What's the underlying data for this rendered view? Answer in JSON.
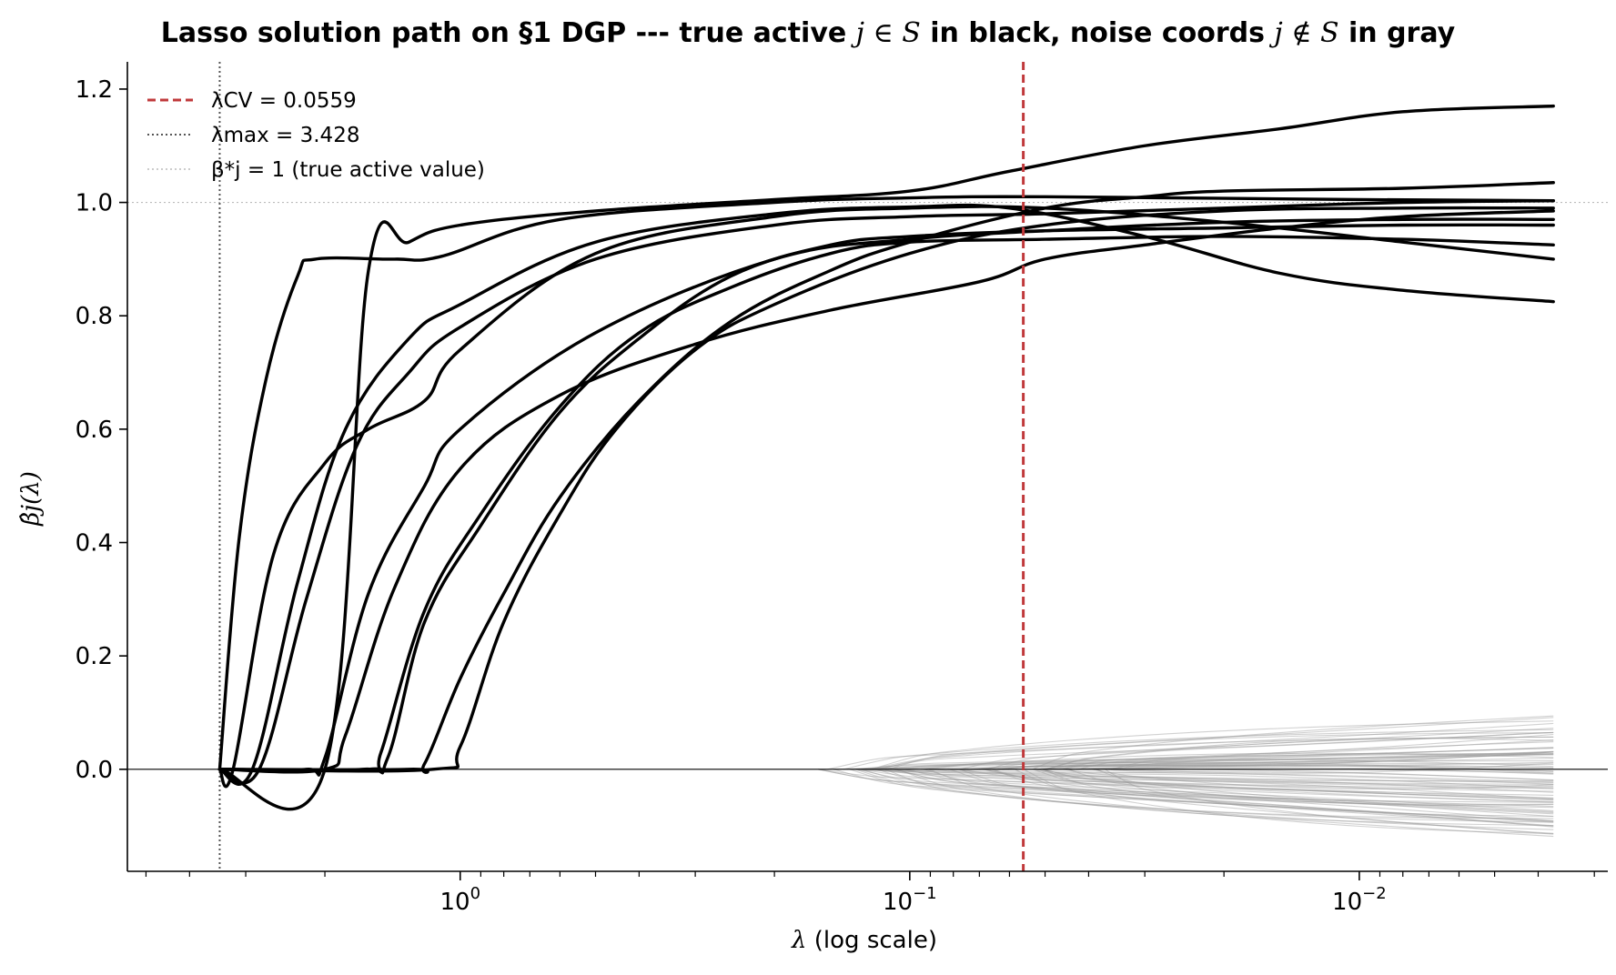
{
  "chart_data": {
    "type": "line",
    "title": {
      "part1": "Lasso solution path on §1 DGP --- true active ",
      "math1": "j ∈ S",
      "part2": " in black, noise coords ",
      "math2": "j ∉ S",
      "part3": " in gray"
    },
    "xlabel": {
      "symbol": "λ",
      "text": " (log scale)"
    },
    "ylabel": "β̂j(λ)",
    "x_scale": "log",
    "x_axis_reversed": true,
    "xlim": [
      5.5,
      0.0028
    ],
    "ylim": [
      -0.18,
      1.24
    ],
    "x_ticks": [
      {
        "value": 1,
        "label": "10",
        "exp": "0"
      },
      {
        "value": 0.1,
        "label": "10",
        "exp": "−1"
      },
      {
        "value": 0.01,
        "label": "10",
        "exp": "−2"
      }
    ],
    "y_ticks": [
      {
        "value": 0.0,
        "label": "0.0"
      },
      {
        "value": 0.2,
        "label": "0.2"
      },
      {
        "value": 0.4,
        "label": "0.4"
      },
      {
        "value": 0.6,
        "label": "0.6"
      },
      {
        "value": 0.8,
        "label": "0.8"
      },
      {
        "value": 1.0,
        "label": "1.0"
      },
      {
        "value": 1.2,
        "label": "1.2"
      }
    ],
    "grid": false,
    "legend": {
      "placement": "top-left",
      "entries": [
        {
          "label": "λCV = 0.0559",
          "style": "dashed",
          "color": "#c0393b"
        },
        {
          "label": "λmax = 3.428",
          "style": "dotted",
          "color": "#555555"
        },
        {
          "label": "β*j = 1 (true active value)",
          "style": "dotted",
          "color": "#bbbbbb"
        }
      ]
    },
    "reference_lines": {
      "lambda_cv": 0.0559,
      "lambda_max": 3.428,
      "true_active_value": 1.0,
      "zero_line": 0.0
    },
    "colors": {
      "active": "#000000",
      "noise": "#9a9a9a",
      "cv": "#c0393b",
      "max": "#555555",
      "truth": "#bbbbbb"
    },
    "series": [
      {
        "group": "active",
        "points": [
          [
            3.428,
            0
          ],
          [
            3.1,
            0.41
          ],
          [
            2.7,
            0.69
          ],
          [
            2.3,
            0.87
          ],
          [
            2.1,
            0.9
          ],
          [
            1.4,
            0.9
          ],
          [
            1.1,
            0.905
          ],
          [
            0.6,
            0.97
          ],
          [
            0.2,
            1.0
          ],
          [
            0.1,
            1.008
          ],
          [
            0.05,
            1.01
          ],
          [
            0.01,
            1.005
          ],
          [
            0.0037,
            1.003
          ]
        ]
      },
      {
        "group": "active",
        "points": [
          [
            3.428,
            0
          ],
          [
            2.0,
            0
          ],
          [
            1.6,
            0.88
          ],
          [
            1.3,
            0.93
          ],
          [
            1.0,
            0.96
          ],
          [
            0.5,
            0.985
          ],
          [
            0.2,
            1.005
          ],
          [
            0.1,
            1.02
          ],
          [
            0.06,
            1.055
          ],
          [
            0.03,
            1.1
          ],
          [
            0.015,
            1.13
          ],
          [
            0.008,
            1.16
          ],
          [
            0.0037,
            1.17
          ]
        ]
      },
      {
        "group": "active",
        "points": [
          [
            3.428,
            0
          ],
          [
            3.2,
            0
          ],
          [
            2.6,
            0.38
          ],
          [
            2.0,
            0.54
          ],
          [
            1.6,
            0.6
          ],
          [
            1.2,
            0.65
          ],
          [
            1.0,
            0.74
          ],
          [
            0.5,
            0.91
          ],
          [
            0.2,
            0.975
          ],
          [
            0.1,
            0.99
          ],
          [
            0.05,
            0.99
          ],
          [
            0.02,
            0.965
          ],
          [
            0.008,
            0.93
          ],
          [
            0.0037,
            0.9
          ]
        ]
      },
      {
        "group": "active",
        "points": [
          [
            3.428,
            0
          ],
          [
            2.9,
            0
          ],
          [
            2.3,
            0.33
          ],
          [
            1.8,
            0.6
          ],
          [
            1.3,
            0.76
          ],
          [
            1.0,
            0.82
          ],
          [
            0.5,
            0.93
          ],
          [
            0.2,
            0.98
          ],
          [
            0.1,
            0.992
          ],
          [
            0.06,
            0.99
          ],
          [
            0.03,
            0.94
          ],
          [
            0.015,
            0.875
          ],
          [
            0.008,
            0.845
          ],
          [
            0.0037,
            0.825
          ]
        ]
      },
      {
        "group": "active",
        "points": [
          [
            3.428,
            0
          ],
          [
            2.8,
            0
          ],
          [
            2.2,
            0.3
          ],
          [
            1.7,
            0.57
          ],
          [
            1.3,
            0.7
          ],
          [
            1.0,
            0.78
          ],
          [
            0.5,
            0.9
          ],
          [
            0.2,
            0.96
          ],
          [
            0.1,
            0.975
          ],
          [
            0.05,
            0.98
          ],
          [
            0.02,
            0.99
          ],
          [
            0.008,
            1.0
          ],
          [
            0.0037,
            1.003
          ]
        ]
      },
      {
        "group": "active",
        "points": [
          [
            3.428,
            0
          ],
          [
            2.2,
            0
          ],
          [
            2.0,
            0.02
          ],
          [
            1.6,
            0.31
          ],
          [
            1.2,
            0.5
          ],
          [
            1.0,
            0.6
          ],
          [
            0.5,
            0.77
          ],
          [
            0.2,
            0.9
          ],
          [
            0.1,
            0.935
          ],
          [
            0.05,
            0.95
          ],
          [
            0.02,
            0.965
          ],
          [
            0.008,
            0.97
          ],
          [
            0.0037,
            0.97
          ]
        ]
      },
      {
        "group": "active",
        "points": [
          [
            3.428,
            0
          ],
          [
            2.0,
            0
          ],
          [
            1.8,
            0.06
          ],
          [
            1.4,
            0.32
          ],
          [
            1.0,
            0.53
          ],
          [
            0.6,
            0.66
          ],
          [
            0.3,
            0.75
          ],
          [
            0.15,
            0.81
          ],
          [
            0.07,
            0.86
          ],
          [
            0.05,
            0.9
          ],
          [
            0.03,
            0.925
          ],
          [
            0.015,
            0.955
          ],
          [
            0.008,
            0.975
          ],
          [
            0.0037,
            0.985
          ]
        ]
      },
      {
        "group": "active",
        "points": [
          [
            3.428,
            0
          ],
          [
            1.6,
            0
          ],
          [
            1.5,
            0.03
          ],
          [
            1.2,
            0.28
          ],
          [
            0.9,
            0.45
          ],
          [
            0.6,
            0.64
          ],
          [
            0.4,
            0.77
          ],
          [
            0.25,
            0.85
          ],
          [
            0.15,
            0.91
          ],
          [
            0.1,
            0.93
          ],
          [
            0.05,
            0.935
          ],
          [
            0.02,
            0.94
          ],
          [
            0.008,
            0.935
          ],
          [
            0.0037,
            0.925
          ]
        ]
      },
      {
        "group": "active",
        "points": [
          [
            3.428,
            0
          ],
          [
            1.65,
            0
          ],
          [
            1.45,
            0.02
          ],
          [
            1.2,
            0.26
          ],
          [
            0.9,
            0.43
          ],
          [
            0.6,
            0.63
          ],
          [
            0.4,
            0.76
          ],
          [
            0.25,
            0.87
          ],
          [
            0.15,
            0.925
          ],
          [
            0.1,
            0.94
          ],
          [
            0.05,
            0.95
          ],
          [
            0.02,
            0.955
          ],
          [
            0.008,
            0.96
          ],
          [
            0.0037,
            0.96
          ]
        ]
      },
      {
        "group": "active",
        "points": [
          [
            3.428,
            0
          ],
          [
            1.15,
            0
          ],
          [
            1.0,
            0.04
          ],
          [
            0.8,
            0.26
          ],
          [
            0.6,
            0.45
          ],
          [
            0.45,
            0.6
          ],
          [
            0.3,
            0.74
          ],
          [
            0.2,
            0.82
          ],
          [
            0.1,
            0.91
          ],
          [
            0.05,
            0.96
          ],
          [
            0.02,
            0.985
          ],
          [
            0.008,
            0.99
          ],
          [
            0.0037,
            0.99
          ]
        ]
      },
      {
        "group": "active",
        "points": [
          [
            3.428,
            0
          ],
          [
            1.3,
            0
          ],
          [
            1.2,
            0.01
          ],
          [
            1.0,
            0.16
          ],
          [
            0.8,
            0.31
          ],
          [
            0.6,
            0.48
          ],
          [
            0.4,
            0.65
          ],
          [
            0.25,
            0.79
          ],
          [
            0.15,
            0.88
          ],
          [
            0.1,
            0.93
          ],
          [
            0.05,
            0.99
          ],
          [
            0.03,
            1.01
          ],
          [
            0.02,
            1.02
          ],
          [
            0.008,
            1.025
          ],
          [
            0.0037,
            1.035
          ]
        ]
      }
    ],
    "noise_paths": {
      "count": 90,
      "lambda_entry_range": [
        0.16,
        0.035
      ],
      "lambda_end": 0.0037,
      "final_value_range": [
        -0.12,
        0.095
      ]
    }
  }
}
